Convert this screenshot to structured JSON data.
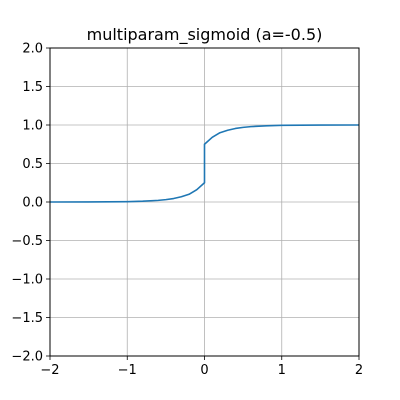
{
  "chart_data": {
    "type": "line",
    "title": "multiparam_sigmoid (a=-0.5)",
    "xlabel": "",
    "ylabel": "",
    "xlim": [
      -2,
      2
    ],
    "ylim": [
      -2,
      2
    ],
    "xticks": [
      -2,
      -1,
      0,
      1,
      2
    ],
    "xtick_labels": [
      "−2",
      "−1",
      "0",
      "1",
      "2"
    ],
    "yticks": [
      -2.0,
      -1.5,
      -1.0,
      -0.5,
      0.0,
      0.5,
      1.0,
      1.5,
      2.0
    ],
    "ytick_labels": [
      "−2.0",
      "−1.5",
      "−1.0",
      "−0.5",
      "0.0",
      "0.5",
      "1.0",
      "1.5",
      "2.0"
    ],
    "grid": true,
    "series": [
      {
        "color": "#1f77b4",
        "x": [
          -2.0,
          -1.5,
          -1.0,
          -0.8,
          -0.6,
          -0.5,
          -0.4,
          -0.3,
          -0.2,
          -0.1,
          0.0,
          0.0,
          0.1,
          0.2,
          0.3,
          0.4,
          0.5,
          0.6,
          0.8,
          1.0,
          1.5,
          2.0
        ],
        "y": [
          0.0,
          0.0003,
          0.0045,
          0.01,
          0.021,
          0.031,
          0.045,
          0.068,
          0.1,
          0.16,
          0.25,
          0.75,
          0.84,
          0.9,
          0.932,
          0.955,
          0.969,
          0.979,
          0.99,
          0.9955,
          0.9997,
          1.0
        ]
      }
    ]
  }
}
